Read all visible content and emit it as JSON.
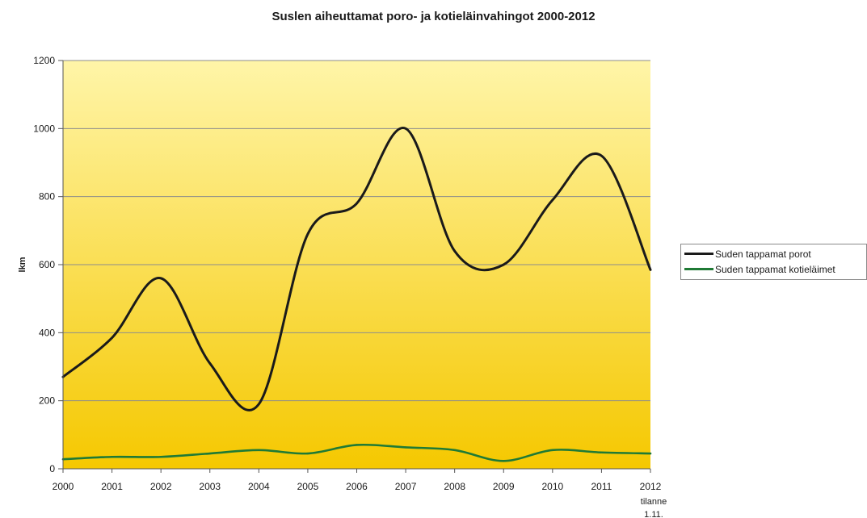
{
  "chart_data": {
    "type": "line",
    "title": "Suslen aiheuttamat poro- ja kotieläinvahingot 2000-2012",
    "xlabel": "",
    "ylabel": "lkm",
    "categories": [
      "2000",
      "2001",
      "2002",
      "2003",
      "2004",
      "2005",
      "2006",
      "2007",
      "2008",
      "2009",
      "2010",
      "2011",
      "2012"
    ],
    "category_sublabels": [
      "",
      "",
      "",
      "",
      "",
      "",
      "",
      "",
      "",
      "",
      "",
      "",
      "tilanne 1.11."
    ],
    "yticks": [
      0,
      200,
      400,
      600,
      800,
      1000,
      1200
    ],
    "ylim": [
      0,
      1200
    ],
    "grid": true,
    "legend_position": "right",
    "series": [
      {
        "name": "Suden tappamat porot",
        "color": "#1a1a1a",
        "values": [
          270,
          385,
          560,
          310,
          190,
          690,
          780,
          1000,
          640,
          600,
          790,
          920,
          585
        ]
      },
      {
        "name": "Suden tappamat kotieläimet",
        "color": "#1f7a35",
        "values": [
          28,
          35,
          35,
          45,
          55,
          45,
          70,
          63,
          55,
          23,
          55,
          48,
          45
        ]
      }
    ],
    "background_gradient": [
      "#fff5a8",
      "#f5c800"
    ]
  }
}
